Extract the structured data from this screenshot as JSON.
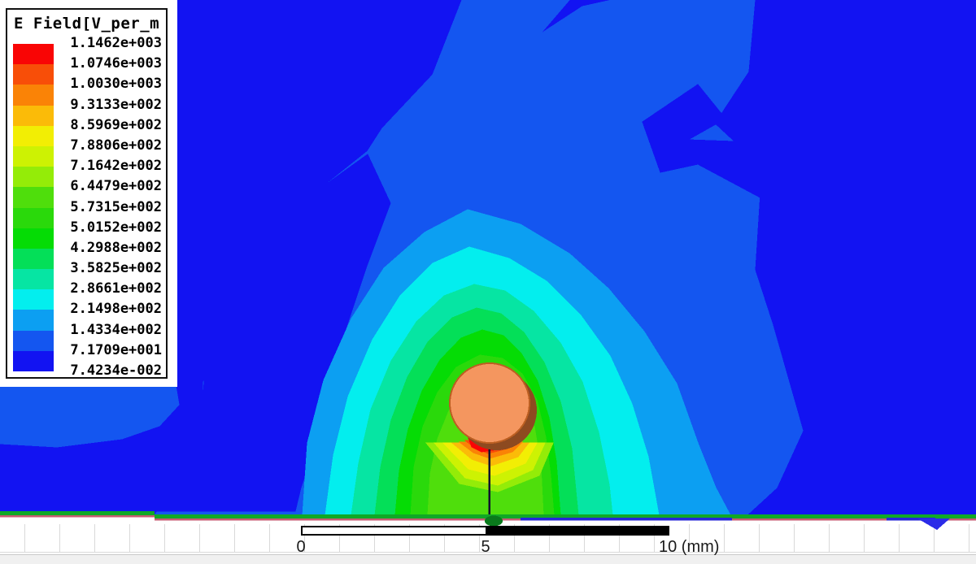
{
  "chart_data": {
    "type": "heatmap",
    "title": "E Field[V_per_m",
    "quantity": "E Field",
    "units": "V_per_m",
    "level_labels": [
      "1.1462e+003",
      "1.0746e+003",
      "1.0030e+003",
      "9.3133e+002",
      "8.5969e+002",
      "7.8806e+002",
      "7.1642e+002",
      "6.4479e+002",
      "5.7315e+002",
      "5.0152e+002",
      "4.2988e+002",
      "3.5825e+002",
      "2.8661e+002",
      "2.1498e+002",
      "1.4334e+002",
      "7.1709e+001",
      "7.4234e-002"
    ],
    "levels": [
      1146.2,
      1074.6,
      1003.0,
      931.33,
      859.69,
      788.06,
      716.42,
      644.79,
      573.15,
      501.52,
      429.88,
      358.25,
      286.61,
      214.98,
      143.34,
      71.709,
      0.074234
    ],
    "palette": [
      "#F90505",
      "#F84E08",
      "#FA8306",
      "#FBBB08",
      "#F2EE04",
      "#CDF203",
      "#94EC08",
      "#4FDE0C",
      "#2AD90B",
      "#05DC05",
      "#04DF58",
      "#06E5A3",
      "#03EEEE",
      "#0C9FF2",
      "#1456F0",
      "#1213F2"
    ],
    "legend_position": "top-left",
    "scale_bar": {
      "tick_labels": [
        "0",
        "5",
        "10 (mm)"
      ],
      "tick_positions_mm": [
        0,
        5,
        10
      ],
      "unit": "mm"
    }
  },
  "scene": {
    "conductor_fill": "#F4965F",
    "conductor_edge": "#BC5F22",
    "conductor_shadow": "#8D4A20",
    "feed_line_color": "#10102E",
    "ground_green": "#10A826",
    "ground_pink": "#C75B72",
    "ground_indigo": "#2626D8",
    "via_blob_green": "#0A7A1C",
    "wedge_blue": "#2B2BE8"
  }
}
